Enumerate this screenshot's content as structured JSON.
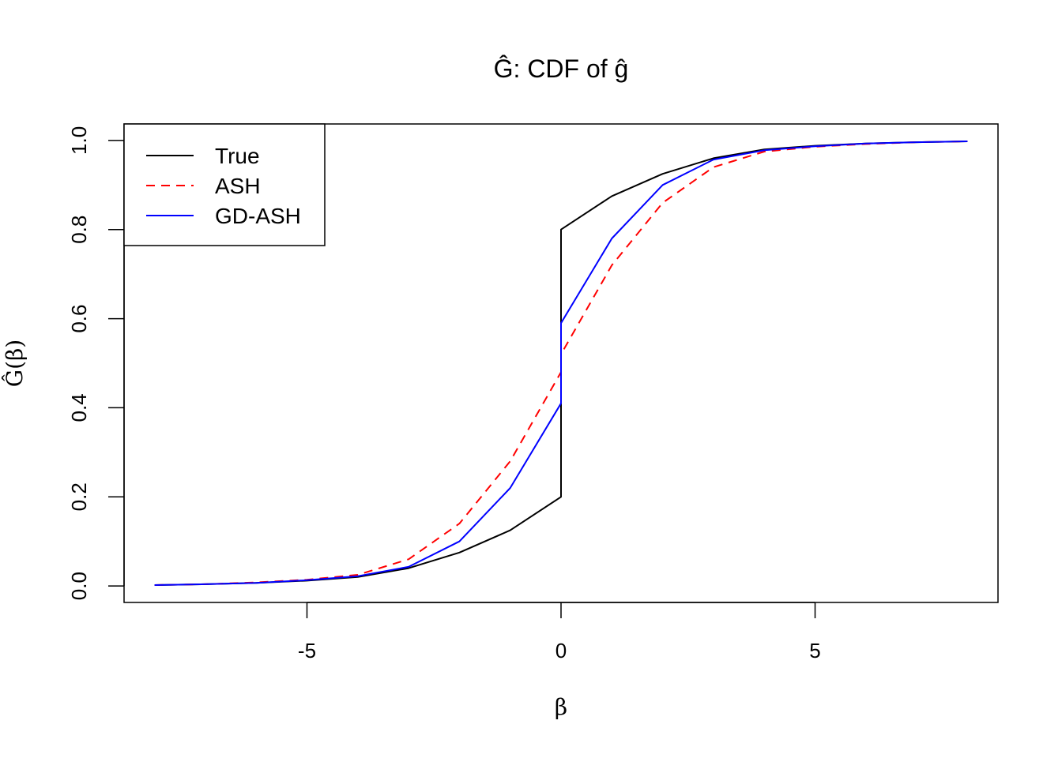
{
  "chart_data": {
    "type": "line",
    "title": "Ĝ: CDF of ĝ",
    "xlabel": "β",
    "ylabel": "Ĝ(β)",
    "xlim": [
      -8.6,
      8.6
    ],
    "ylim": [
      -0.037,
      1.037
    ],
    "x_ticks": [
      -5,
      0,
      5
    ],
    "x_tick_labels": [
      "-5",
      "0",
      "5"
    ],
    "y_ticks": [
      0.0,
      0.2,
      0.4,
      0.6,
      0.8,
      1.0
    ],
    "y_tick_labels": [
      "0.0",
      "0.2",
      "0.4",
      "0.6",
      "0.8",
      "1.0"
    ],
    "grid": false,
    "legend_position": "top-left",
    "series": [
      {
        "name": "True",
        "color": "#000000",
        "dash": "solid",
        "points": [
          [
            -8,
            0.002
          ],
          [
            -7,
            0.004
          ],
          [
            -6,
            0.007
          ],
          [
            -5,
            0.012
          ],
          [
            -4,
            0.02
          ],
          [
            -3,
            0.04
          ],
          [
            -2,
            0.075
          ],
          [
            -1,
            0.125
          ],
          [
            0,
            0.2
          ],
          [
            0,
            0.8
          ],
          [
            1,
            0.875
          ],
          [
            2,
            0.925
          ],
          [
            3,
            0.96
          ],
          [
            4,
            0.98
          ],
          [
            5,
            0.988
          ],
          [
            6,
            0.993
          ],
          [
            7,
            0.996
          ],
          [
            8,
            0.998
          ]
        ]
      },
      {
        "name": "ASH",
        "color": "#ff0000",
        "dash": "dashed",
        "points": [
          [
            -8,
            0.002
          ],
          [
            -7,
            0.004
          ],
          [
            -6,
            0.008
          ],
          [
            -5,
            0.014
          ],
          [
            -4,
            0.025
          ],
          [
            -3,
            0.06
          ],
          [
            -2,
            0.14
          ],
          [
            -1,
            0.28
          ],
          [
            0,
            0.48
          ],
          [
            0,
            0.52
          ],
          [
            1,
            0.72
          ],
          [
            2,
            0.86
          ],
          [
            3,
            0.94
          ],
          [
            4,
            0.975
          ],
          [
            5,
            0.986
          ],
          [
            6,
            0.992
          ],
          [
            7,
            0.996
          ],
          [
            8,
            0.998
          ]
        ]
      },
      {
        "name": "GD-ASH",
        "color": "#0000ff",
        "dash": "solid",
        "points": [
          [
            -8,
            0.002
          ],
          [
            -7,
            0.004
          ],
          [
            -6,
            0.007
          ],
          [
            -5,
            0.013
          ],
          [
            -4,
            0.022
          ],
          [
            -3,
            0.043
          ],
          [
            -2,
            0.1
          ],
          [
            -1,
            0.22
          ],
          [
            0,
            0.41
          ],
          [
            0,
            0.59
          ],
          [
            1,
            0.78
          ],
          [
            2,
            0.9
          ],
          [
            3,
            0.957
          ],
          [
            4,
            0.978
          ],
          [
            5,
            0.987
          ],
          [
            6,
            0.993
          ],
          [
            7,
            0.996
          ],
          [
            8,
            0.998
          ]
        ]
      }
    ]
  }
}
